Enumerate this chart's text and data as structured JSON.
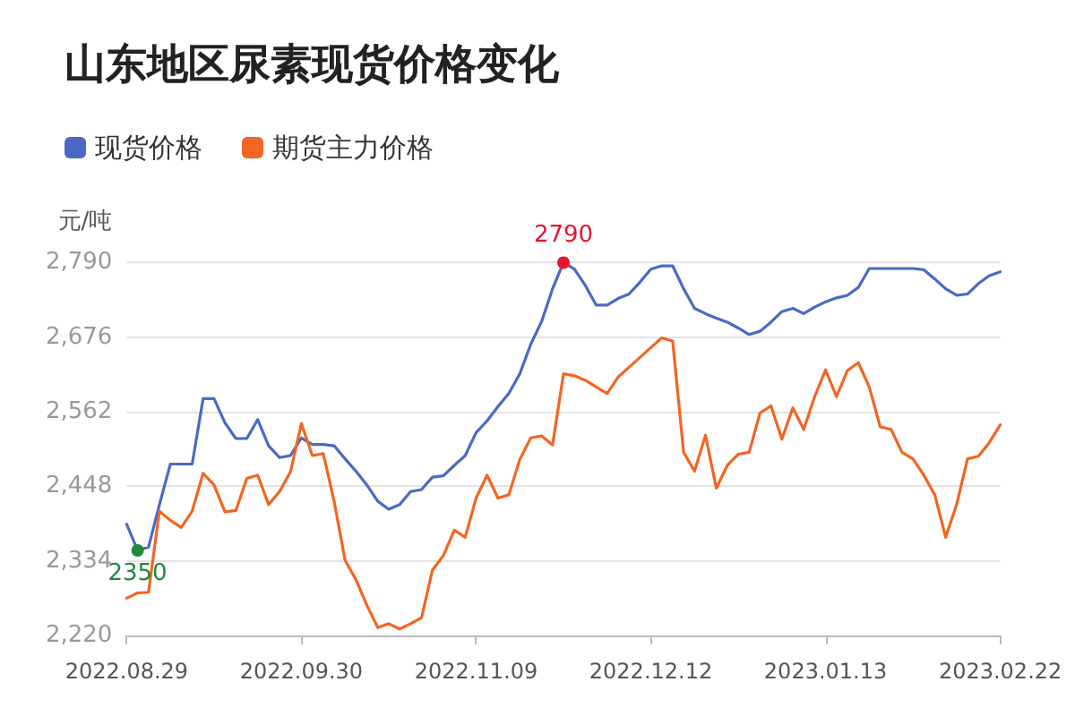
{
  "chart_data": {
    "type": "line",
    "title": "山东地区尿素现货价格变化",
    "ylabel": "元/吨",
    "categories": [
      "2022.08.29",
      null,
      null,
      null,
      null,
      null,
      null,
      null,
      null,
      null,
      null,
      null,
      null,
      null,
      null,
      null,
      "2022.09.30",
      null,
      null,
      null,
      null,
      null,
      null,
      null,
      null,
      null,
      null,
      null,
      null,
      null,
      null,
      null,
      "2022.11.09",
      null,
      null,
      null,
      null,
      null,
      null,
      null,
      null,
      null,
      null,
      null,
      null,
      null,
      null,
      null,
      "2022.12.12",
      null,
      null,
      null,
      null,
      null,
      null,
      null,
      null,
      null,
      null,
      null,
      null,
      null,
      null,
      null,
      "2023.01.13",
      null,
      null,
      null,
      null,
      null,
      null,
      null,
      null,
      null,
      null,
      null,
      null,
      null,
      null,
      null,
      "2023.02.22"
    ],
    "series": [
      {
        "name": "现货价格",
        "color": "#4a69c6",
        "values": [
          2390,
          2350,
          2355,
          2420,
          2482,
          2482,
          2482,
          2582,
          2582,
          2545,
          2521,
          2521,
          2550,
          2510,
          2492,
          2495,
          2522,
          2512,
          2512,
          2510,
          2490,
          2471,
          2450,
          2425,
          2413,
          2420,
          2440,
          2443,
          2462,
          2464,
          2480,
          2495,
          2530,
          2548,
          2570,
          2590,
          2620,
          2665,
          2700,
          2750,
          2790,
          2780,
          2755,
          2725,
          2725,
          2735,
          2742,
          2760,
          2780,
          2785,
          2785,
          2750,
          2720,
          2712,
          2705,
          2699,
          2690,
          2680,
          2685,
          2699,
          2715,
          2720,
          2712,
          2722,
          2730,
          2736,
          2740,
          2752,
          2781,
          2781,
          2781,
          2781,
          2781,
          2779,
          2765,
          2750,
          2740,
          2742,
          2758,
          2770,
          2776
        ]
      },
      {
        "name": "期货主力价格",
        "color": "#f26522",
        "values": [
          2277,
          2285,
          2286,
          2410,
          2396,
          2385,
          2410,
          2468,
          2450,
          2409,
          2411,
          2460,
          2465,
          2420,
          2440,
          2470,
          2544,
          2495,
          2498,
          2425,
          2335,
          2305,
          2266,
          2232,
          2238,
          2230,
          2238,
          2247,
          2320,
          2342,
          2381,
          2370,
          2430,
          2465,
          2430,
          2435,
          2489,
          2522,
          2525,
          2511,
          2620,
          2617,
          2610,
          2600,
          2590,
          2615,
          2630,
          2645,
          2660,
          2675,
          2670,
          2500,
          2471,
          2526,
          2445,
          2480,
          2497,
          2500,
          2560,
          2571,
          2520,
          2568,
          2535,
          2585,
          2626,
          2585,
          2625,
          2637,
          2600,
          2539,
          2535,
          2500,
          2490,
          2465,
          2435,
          2370,
          2420,
          2490,
          2494,
          2515,
          2542
        ]
      }
    ],
    "ylim": [
      2220,
      2790
    ],
    "yticks": [
      {
        "value": 2220,
        "label": "2,220"
      },
      {
        "value": 2334,
        "label": "2,334"
      },
      {
        "value": 2448,
        "label": "2,448"
      },
      {
        "value": 2562,
        "label": "2,562"
      },
      {
        "value": 2676,
        "label": "2,676"
      },
      {
        "value": 2790,
        "label": "2,790"
      }
    ],
    "annotations": [
      {
        "text": "2790",
        "y": 2790
      },
      {
        "text": "2350",
        "y": 2350
      }
    ],
    "grid": "y",
    "legend": "top left",
    "marker": "none"
  }
}
